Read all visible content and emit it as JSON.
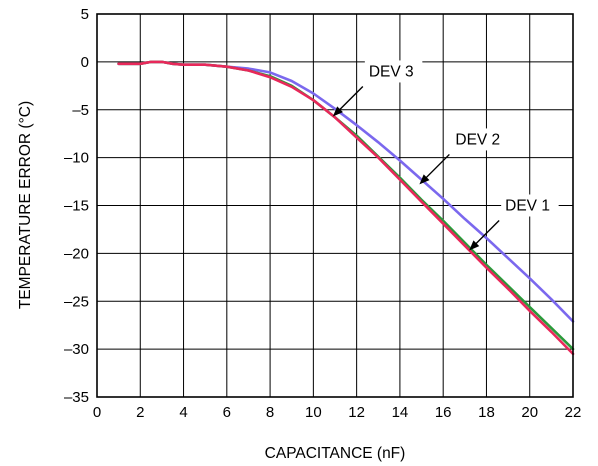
{
  "chart_data": {
    "type": "line",
    "title": "",
    "xlabel": "CAPACITANCE (nF)",
    "ylabel": "TEMPERATURE ERROR (°C)",
    "xlim": [
      0,
      22
    ],
    "ylim": [
      -35,
      5
    ],
    "xticks": [
      0,
      2,
      4,
      6,
      8,
      10,
      12,
      14,
      16,
      18,
      20,
      22
    ],
    "yticks": [
      5,
      0,
      -5,
      -10,
      -15,
      -20,
      -25,
      -30,
      -35
    ],
    "x_tick_labels": [
      "0",
      "2",
      "4",
      "6",
      "8",
      "10",
      "12",
      "14",
      "16",
      "18",
      "20",
      "22"
    ],
    "y_tick_labels": [
      "5",
      "0",
      "–5",
      "–10",
      "–15",
      "–20",
      "–25",
      "–30",
      "–35"
    ],
    "grid": true,
    "legend": "none",
    "series": [
      {
        "name": "DEV 3",
        "color": "#7b68ee",
        "points": [
          [
            1,
            -0.2
          ],
          [
            2,
            -0.2
          ],
          [
            2.5,
            0.0
          ],
          [
            3,
            0.0
          ],
          [
            3.5,
            -0.2
          ],
          [
            4,
            -0.3
          ],
          [
            5,
            -0.3
          ],
          [
            6,
            -0.5
          ],
          [
            7,
            -0.7
          ],
          [
            8,
            -1.1
          ],
          [
            9,
            -2.0
          ],
          [
            10,
            -3.3
          ],
          [
            11,
            -4.9
          ],
          [
            12,
            -6.6
          ],
          [
            13,
            -8.4
          ],
          [
            14,
            -10.3
          ],
          [
            15,
            -12.3
          ],
          [
            16,
            -14.3
          ],
          [
            17,
            -16.4
          ],
          [
            18,
            -18.4
          ],
          [
            19,
            -20.5
          ],
          [
            20,
            -22.6
          ],
          [
            21,
            -24.8
          ],
          [
            22,
            -27.1
          ]
        ]
      },
      {
        "name": "DEV 2",
        "color": "#2a9a3a",
        "points": [
          [
            1,
            -0.2
          ],
          [
            2,
            -0.2
          ],
          [
            2.5,
            0.0
          ],
          [
            3,
            0.0
          ],
          [
            3.5,
            -0.2
          ],
          [
            4,
            -0.3
          ],
          [
            5,
            -0.3
          ],
          [
            6,
            -0.5
          ],
          [
            7,
            -0.9
          ],
          [
            8,
            -1.5
          ],
          [
            9,
            -2.5
          ],
          [
            10,
            -4.0
          ],
          [
            11,
            -5.8
          ],
          [
            12,
            -7.7
          ],
          [
            13,
            -9.9
          ],
          [
            14,
            -12.1
          ],
          [
            15,
            -14.4
          ],
          [
            16,
            -16.6
          ],
          [
            17,
            -18.9
          ],
          [
            18,
            -21.2
          ],
          [
            19,
            -23.4
          ],
          [
            20,
            -25.6
          ],
          [
            21,
            -27.8
          ],
          [
            22,
            -30.0
          ]
        ]
      },
      {
        "name": "DEV 1",
        "color": "#e8285a",
        "points": [
          [
            1,
            -0.2
          ],
          [
            2,
            -0.2
          ],
          [
            2.5,
            0.0
          ],
          [
            3,
            0.0
          ],
          [
            3.5,
            -0.2
          ],
          [
            4,
            -0.3
          ],
          [
            5,
            -0.3
          ],
          [
            6,
            -0.5
          ],
          [
            7,
            -0.9
          ],
          [
            8,
            -1.6
          ],
          [
            9,
            -2.6
          ],
          [
            10,
            -4.0
          ],
          [
            11,
            -5.8
          ],
          [
            12,
            -7.9
          ],
          [
            13,
            -10.0
          ],
          [
            14,
            -12.3
          ],
          [
            15,
            -14.6
          ],
          [
            16,
            -16.9
          ],
          [
            17,
            -19.2
          ],
          [
            18,
            -21.5
          ],
          [
            19,
            -23.7
          ],
          [
            20,
            -26.0
          ],
          [
            21,
            -28.2
          ],
          [
            22,
            -30.5
          ]
        ]
      }
    ],
    "annotations": [
      {
        "text": "DEV 3",
        "arrow_to": [
          10.9,
          -5.7
        ],
        "position": "upper-right"
      },
      {
        "text": "DEV 2",
        "arrow_to": [
          14.9,
          -12.8
        ],
        "position": "upper-right"
      },
      {
        "text": "DEV 1",
        "arrow_to": [
          17.2,
          -19.7
        ],
        "position": "upper-right"
      }
    ]
  }
}
